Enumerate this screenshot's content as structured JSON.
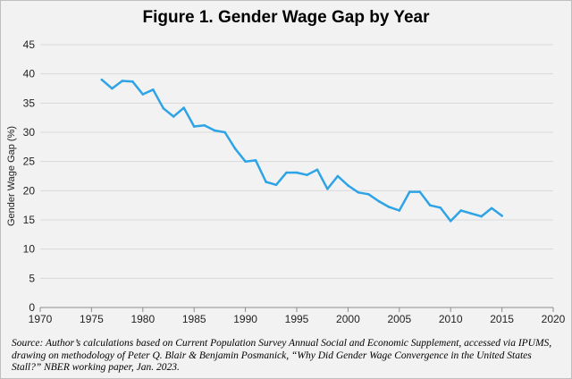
{
  "title": "Figure 1. Gender Wage Gap by Year",
  "source_note": "Source: Author’s calculations based on Current Population Survey Annual Social and Economic Supplement, accessed via IPUMS, drawing on methodology of Peter Q. Blair & Benjamin Posmanick, “Why Did Gender Wage Convergence in the United States Stall?” NBER working paper, Jan. 2023.",
  "chart_data": {
    "type": "line",
    "title": "Figure 1. Gender Wage Gap by Year",
    "xlabel": "",
    "ylabel": "Gender Wage Gap (%)",
    "xlim": [
      1970,
      2020
    ],
    "ylim": [
      0,
      45
    ],
    "x_ticks": [
      1970,
      1975,
      1980,
      1985,
      1990,
      1995,
      2000,
      2005,
      2010,
      2015,
      2020
    ],
    "y_ticks": [
      0,
      5,
      10,
      15,
      20,
      25,
      30,
      35,
      40,
      45
    ],
    "grid": "horizontal",
    "legend": "none",
    "line_color": "#2ea3e6",
    "series": [
      {
        "x": [
          1976,
          1977,
          1978,
          1979,
          1980,
          1981,
          1982,
          1983,
          1984,
          1985,
          1986,
          1987,
          1988,
          1989,
          1990,
          1991,
          1992,
          1993,
          1994,
          1995,
          1996,
          1997,
          1998,
          1999,
          2000,
          2001,
          2002,
          2003,
          2004,
          2005,
          2006,
          2007,
          2008,
          2009,
          2010,
          2011,
          2012,
          2013,
          2014,
          2015
        ],
        "values": [
          39.0,
          37.5,
          38.8,
          38.7,
          36.5,
          37.3,
          34.1,
          32.7,
          34.2,
          31.0,
          31.2,
          30.3,
          30.0,
          27.2,
          25.0,
          25.2,
          21.5,
          21.0,
          23.1,
          23.1,
          22.7,
          23.6,
          20.3,
          22.5,
          20.9,
          19.7,
          19.4,
          18.2,
          17.2,
          16.6,
          19.8,
          19.8,
          17.5,
          17.1,
          14.8,
          16.6,
          16.1,
          15.6,
          17.0,
          15.7
        ]
      }
    ]
  }
}
